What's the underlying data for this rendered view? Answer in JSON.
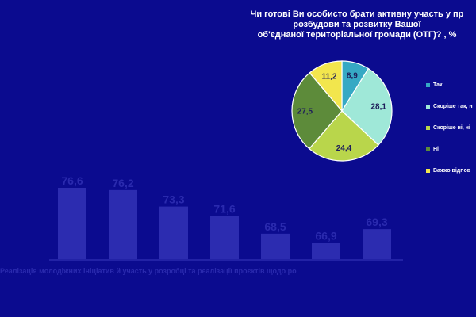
{
  "pie_title_lines": [
    "Чи готові Ви особисто брати активну участь у пр",
    "розбудови та розвитку Вашої",
    "об'єднаної територіальної громади (ОТГ)? , %"
  ],
  "bar_caption": "Реалізація молодіжних ініціатив й участь у розробці та реалізації проєктів щодо ро",
  "chart_data": [
    {
      "type": "pie",
      "title": "Чи готові Ви особисто брати активну участь у пр розбудови та розвитку Вашої об'єднаної територіальної громади (ОТГ)? , %",
      "slices": [
        {
          "label": "Так",
          "value": 8.9,
          "display": "8,9",
          "color": "#36a9c4"
        },
        {
          "label": "Скоріше так, н",
          "value": 28.1,
          "display": "28,1",
          "color": "#9fe8d8"
        },
        {
          "label": "Скоріше ні, ні",
          "value": 24.4,
          "display": "24,4",
          "color": "#b9d64b"
        },
        {
          "label": "Ні",
          "value": 27.5,
          "display": "27,5",
          "color": "#5d8b3a"
        },
        {
          "label": "Важко відпов",
          "value": 11.2,
          "display": "11,2",
          "color": "#f2e64d"
        }
      ],
      "legend_position": "right"
    },
    {
      "type": "bar",
      "categories": [
        "",
        "",
        "",
        "",
        "",
        "",
        ""
      ],
      "values": [
        76.6,
        76.2,
        73.3,
        71.6,
        68.5,
        66.9,
        69.3
      ],
      "labels": [
        "76,6",
        "76,2",
        "73,3",
        "71,6",
        "68,5",
        "66,9",
        "69,3"
      ],
      "bar_color": "#2c2cb0",
      "label_color": "#2a2aae",
      "ylim": [
        64,
        78
      ],
      "grid": false
    }
  ]
}
